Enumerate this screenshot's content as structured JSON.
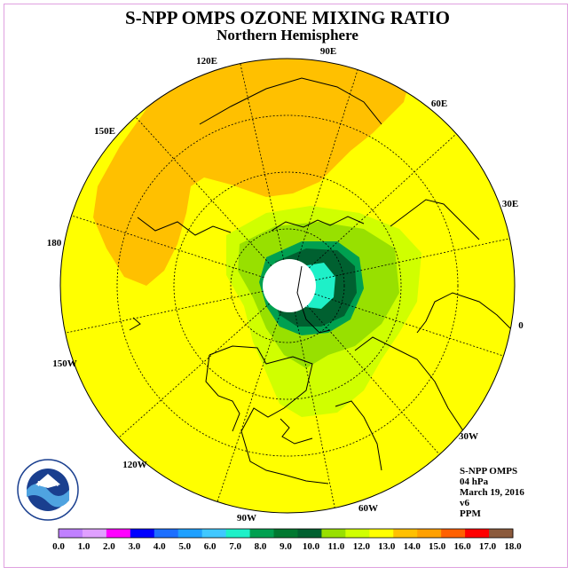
{
  "title": "S-NPP OMPS OZONE MIXING RATIO",
  "subtitle": "Northern Hemisphere",
  "longitude_labels": [
    "90E",
    "60E",
    "30E",
    "0",
    "30W",
    "60W",
    "90W",
    "120W",
    "150W",
    "180",
    "150E",
    "120E"
  ],
  "info": {
    "instrument": "S-NPP OMPS",
    "level": "04 hPa",
    "date": "March 19, 2016",
    "version": "v6",
    "units": "PPM"
  },
  "logo": {
    "text": "NOAA",
    "ring_text": "NATIONAL OCEANIC AND ATMOSPHERIC ADMINISTRATION · U.S. DEPARTMENT OF COMMERCE"
  },
  "colorbar": {
    "ticks": [
      "0.0",
      "1.0",
      "2.0",
      "3.0",
      "4.0",
      "5.0",
      "6.0",
      "7.0",
      "8.0",
      "9.0",
      "10.0",
      "11.0",
      "12.0",
      "13.0",
      "14.0",
      "15.0",
      "16.0",
      "17.0",
      "18.0"
    ],
    "colors": [
      "#c080ff",
      "#e0a0ff",
      "#ff00ff",
      "#0000ff",
      "#1c6fff",
      "#1ea0ff",
      "#40c8ff",
      "#1ef0c8",
      "#00a050",
      "#007830",
      "#006030",
      "#98e000",
      "#d0ff00",
      "#ffff00",
      "#ffc000",
      "#ffa000",
      "#ff6000",
      "#ff0000",
      "#8b5a3c"
    ]
  },
  "colors": {
    "background_field": "#ffff00",
    "high_region": "#ffc000",
    "low_light": "#d0ff00",
    "low_mid": "#98e000",
    "low_dark": "#00a050",
    "low_darker": "#006030",
    "low_cyan": "#1ef0c8",
    "missing_pole": "#ffffff"
  }
}
